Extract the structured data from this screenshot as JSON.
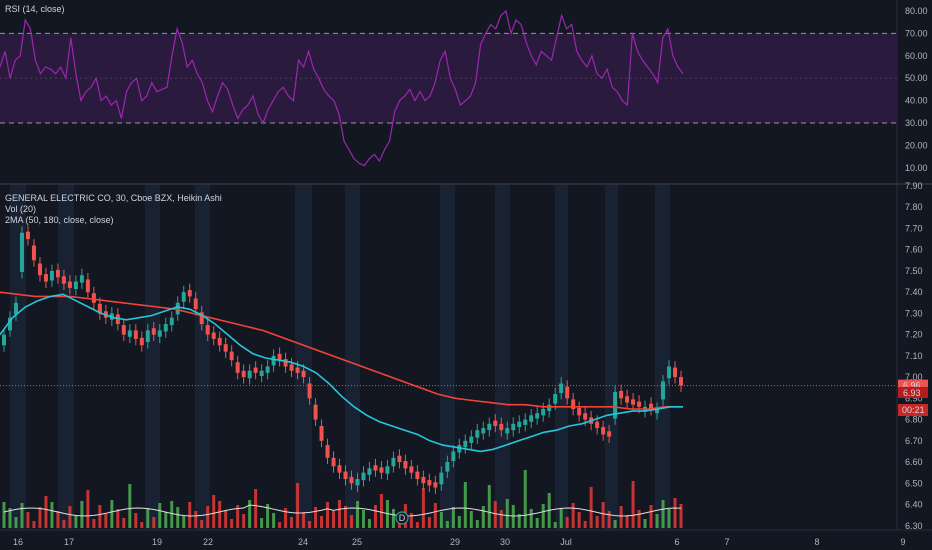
{
  "rsi_panel": {
    "legend": "RSI (14, close)",
    "ticks": [
      "80.00",
      "70.00",
      "60.00",
      "50.00",
      "40.00",
      "30.00",
      "20.00",
      "10.00"
    ],
    "upper_band": 70,
    "lower_band": 30,
    "line_color": "#9c27b0",
    "band_fill": "#2a1a3e"
  },
  "price_panel": {
    "legend_title": "GENERAL ELECTRIC CO, 30, Cboe BZX, Heikin Ashi",
    "legend_vol": "Vol (20)",
    "legend_ma": "2MA (50, 180, close, close)",
    "ticks": [
      "7.90",
      "7.80",
      "7.70",
      "7.60",
      "7.50",
      "7.40",
      "7.30",
      "7.20",
      "7.10",
      "7.00",
      "6.90",
      "6.80",
      "6.70",
      "6.60",
      "6.50",
      "6.40",
      "6.30"
    ],
    "last_price_label": "6.96",
    "prev_label": "6.93",
    "countdown_label": "00:21",
    "up_color": "#26a69a",
    "down_color": "#ef5350",
    "ma_fast_color": "#26c6da",
    "ma_slow_color": "#f44336",
    "vol_up_color": "#4caf50",
    "vol_down_color": "#e53935",
    "dividend_marker": "D"
  },
  "x_axis": {
    "labels": [
      "16",
      "17",
      "19",
      "22",
      "24",
      "25",
      "29",
      "30",
      "Jul",
      "6",
      "7",
      "8",
      "9"
    ]
  },
  "chart_data": [
    {
      "type": "line",
      "title": "RSI (14, close)",
      "ylim": [
        5,
        85
      ],
      "x": [
        0,
        1,
        2,
        3,
        4,
        5,
        6,
        7,
        8,
        9,
        10,
        11,
        12,
        13,
        14,
        15,
        16,
        17,
        18,
        19,
        20,
        21,
        22,
        23,
        24,
        25,
        26,
        27,
        28,
        29,
        30,
        31,
        32,
        33,
        34,
        35,
        36,
        37,
        38,
        39,
        40,
        41,
        42,
        43,
        44,
        45,
        46,
        47,
        48,
        49,
        50,
        51,
        52,
        53,
        54,
        55,
        56,
        57,
        58,
        59,
        60,
        61,
        62,
        63,
        64,
        65,
        66,
        67,
        68,
        69,
        70,
        71,
        72,
        73,
        74,
        75,
        76,
        77,
        78,
        79,
        80,
        81,
        82,
        83,
        84,
        85,
        86,
        87,
        88,
        89,
        90,
        91,
        92,
        93,
        94,
        95,
        96,
        97,
        98,
        99,
        100,
        101,
        102,
        103,
        104,
        105,
        106,
        107,
        108,
        109,
        110,
        111,
        112,
        113,
        114,
        115,
        116,
        117,
        118,
        119,
        120,
        121,
        122,
        123,
        124,
        125,
        126,
        127,
        128,
        129,
        130,
        131,
        132,
        133,
        134,
        135
      ],
      "series": [
        {
          "values": [
            55,
            62,
            50,
            58,
            60,
            76,
            72,
            58,
            52,
            55,
            54,
            52,
            55,
            50,
            68,
            52,
            40,
            44,
            46,
            50,
            40,
            42,
            38,
            40,
            32,
            44,
            48,
            50,
            40,
            42,
            48,
            44,
            45,
            46,
            60,
            72,
            66,
            55,
            58,
            52,
            48,
            40,
            35,
            42,
            48,
            45,
            38,
            32,
            36,
            38,
            42,
            34,
            30,
            36,
            40,
            44,
            46,
            42,
            40,
            58,
            55,
            62,
            54,
            50,
            45,
            42,
            40,
            34,
            22,
            18,
            14,
            12,
            11,
            14,
            16,
            13,
            18,
            22,
            35,
            40,
            42,
            45,
            40,
            44,
            40,
            42,
            48,
            58,
            62,
            50,
            45,
            38,
            40,
            42,
            48,
            65,
            70,
            74,
            72,
            78,
            80,
            70,
            76,
            74,
            66,
            60,
            56,
            62,
            60,
            58,
            68,
            78,
            72,
            74,
            62,
            58,
            55,
            60,
            52,
            50,
            54,
            46,
            44,
            40,
            38,
            70,
            62,
            58,
            55,
            52,
            48,
            68,
            72,
            60,
            55,
            52
          ]
        }
      ]
    },
    {
      "type": "line",
      "title": "GENERAL ELECTRIC CO, 30, Cboe BZX, Heikin Ashi",
      "ylim": [
        6.28,
        7.9
      ],
      "x_tick_labels": [
        "16",
        "17",
        "19",
        "22",
        "24",
        "25",
        "29",
        "30",
        "Jul",
        "6",
        "7",
        "8",
        "9"
      ],
      "series": [
        {
          "name": "close",
          "values": [
            7.2,
            7.28,
            7.35,
            7.68,
            7.65,
            7.55,
            7.48,
            7.45,
            7.5,
            7.47,
            7.44,
            7.42,
            7.45,
            7.48,
            7.4,
            7.35,
            7.3,
            7.28,
            7.3,
            7.25,
            7.2,
            7.22,
            7.18,
            7.15,
            7.22,
            7.2,
            7.22,
            7.25,
            7.28,
            7.35,
            7.4,
            7.38,
            7.32,
            7.25,
            7.2,
            7.18,
            7.15,
            7.12,
            7.08,
            7.02,
            7.0,
            7.03,
            7.02,
            7.03,
            7.05,
            7.1,
            7.08,
            7.05,
            7.03,
            7.02,
            7.0,
            6.9,
            6.8,
            6.7,
            6.62,
            6.58,
            6.55,
            6.52,
            6.5,
            6.52,
            6.55,
            6.57,
            6.56,
            6.55,
            6.58,
            6.62,
            6.6,
            6.57,
            6.55,
            6.52,
            6.5,
            6.49,
            6.48,
            6.55,
            6.6,
            6.65,
            6.68,
            6.7,
            6.72,
            6.75,
            6.76,
            6.78,
            6.77,
            6.75,
            6.76,
            6.78,
            6.79,
            6.8,
            6.82,
            6.83,
            6.85,
            6.87,
            6.92,
            6.97,
            6.9,
            6.85,
            6.82,
            6.8,
            6.78,
            6.76,
            6.73,
            6.72,
            6.93,
            6.9,
            6.88,
            6.87,
            6.86,
            6.86,
            6.85,
            6.85,
            6.98,
            7.05,
            7.0,
            6.96
          ]
        }
      ]
    },
    {
      "type": "line",
      "title": "2MA (50, 180, close, close)",
      "series": [
        {
          "name": "50",
          "values": [
            7.2,
            7.28,
            7.33,
            7.36,
            7.38,
            7.39,
            7.36,
            7.33,
            7.3,
            7.28,
            7.27,
            7.28,
            7.29,
            7.31,
            7.33,
            7.32,
            7.29,
            7.25,
            7.2,
            7.15,
            7.11,
            7.09,
            7.08,
            7.07,
            7.05,
            7.02,
            6.97,
            6.91,
            6.86,
            6.82,
            6.79,
            6.77,
            6.75,
            6.73,
            6.7,
            6.68,
            6.67,
            6.66,
            6.65,
            6.66,
            6.68,
            6.7,
            6.72,
            6.74,
            6.75,
            6.77,
            6.78,
            6.8,
            6.82,
            6.83,
            6.84,
            6.84,
            6.85,
            6.86,
            6.86
          ]
        },
        {
          "name": "180",
          "values": [
            7.4,
            7.39,
            7.38,
            7.38,
            7.38,
            7.37,
            7.36,
            7.35,
            7.34,
            7.33,
            7.32,
            7.3,
            7.28,
            7.26,
            7.24,
            7.22,
            7.19,
            7.16,
            7.13,
            7.1,
            7.07,
            7.04,
            7.01,
            6.98,
            6.95,
            6.92,
            6.9,
            6.89,
            6.88,
            6.87,
            6.87,
            6.86,
            6.86,
            6.86,
            6.86,
            6.86,
            6.85,
            6.85,
            6.86,
            6.86
          ]
        }
      ]
    }
  ]
}
